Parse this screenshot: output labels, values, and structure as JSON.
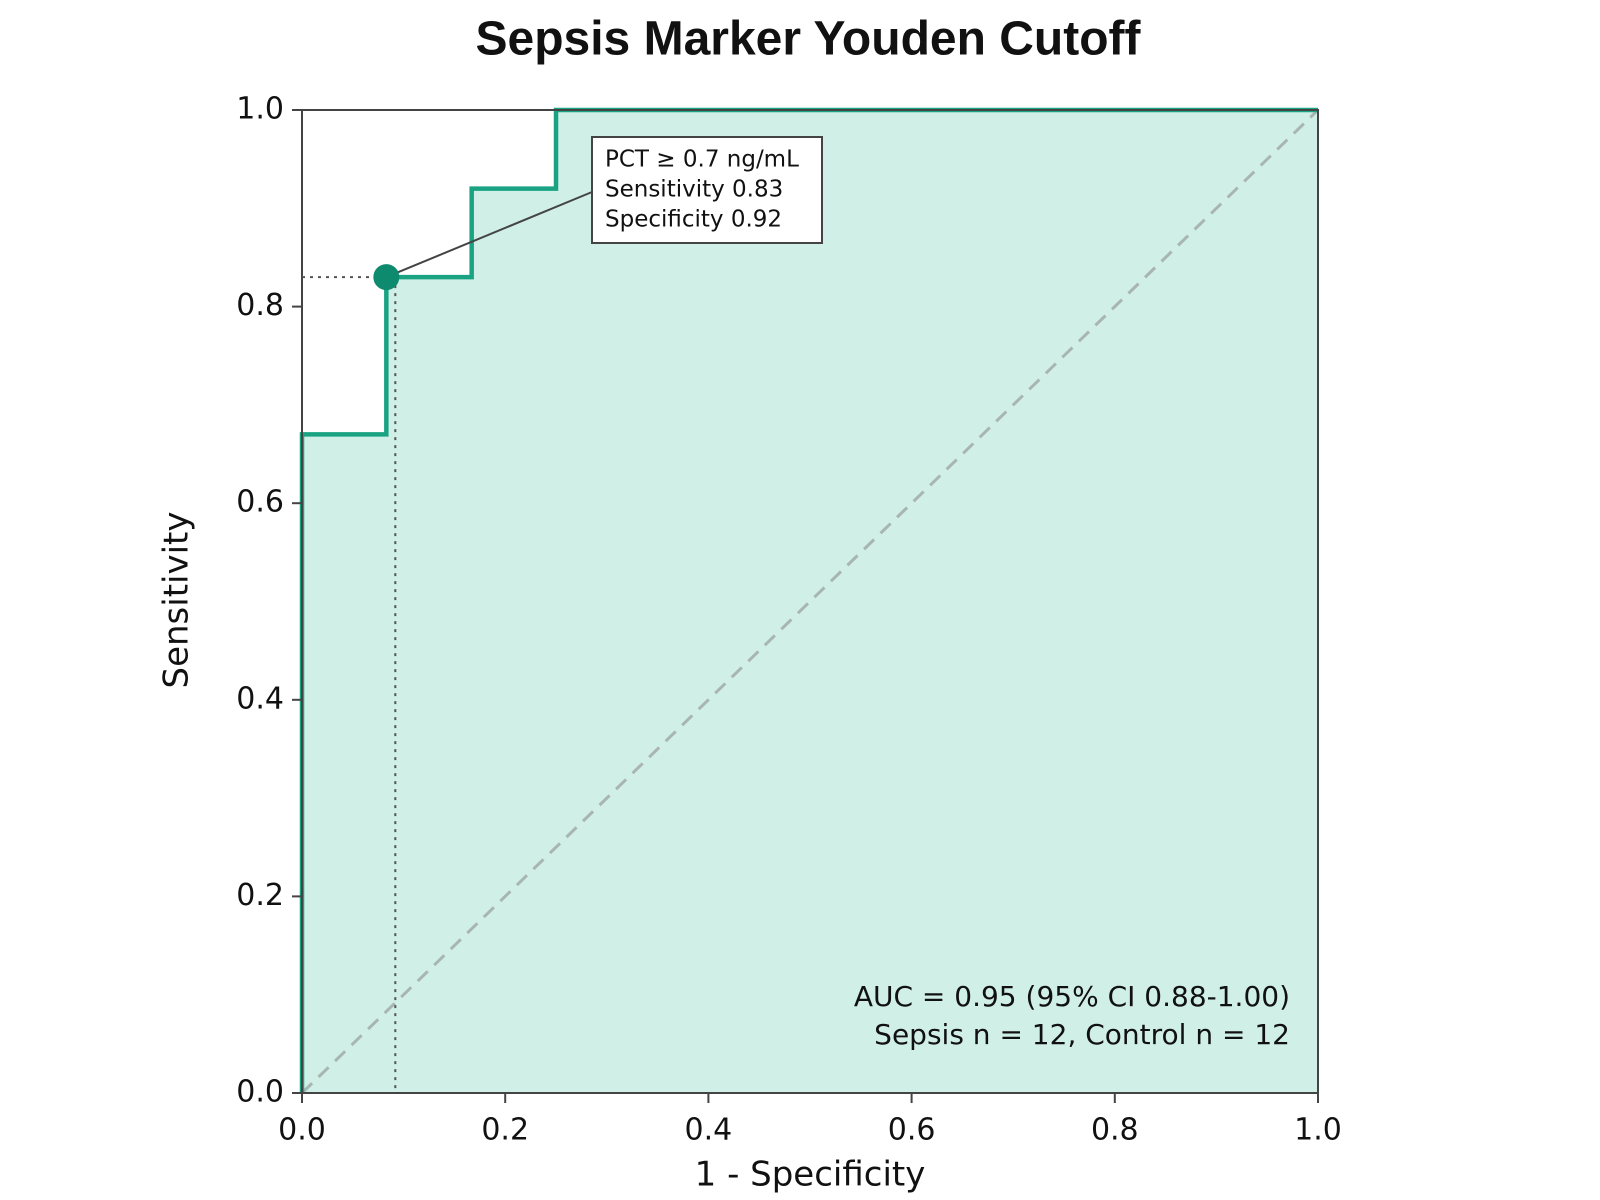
{
  "chart_data": {
    "type": "step",
    "title": "Sepsis Marker Youden Cutoff",
    "x_label": "1 - Specificity",
    "y_label": "Sensitivity",
    "x": [
      0,
      0,
      0.083,
      0.083,
      0.167,
      0.167,
      0.25,
      0.25,
      1
    ],
    "values": [
      0,
      0.67,
      0.67,
      0.83,
      0.83,
      0.92,
      0.92,
      1,
      1
    ],
    "color": "#1aa383",
    "fill_color": "#d0efe7",
    "xlim": [
      0,
      1
    ],
    "ylim": [
      0,
      1
    ],
    "xticks": [
      {
        "value": 0,
        "label": "0.0"
      },
      0.2,
      0.4,
      0.6,
      0.8,
      {
        "value": 1,
        "label": "1.0"
      }
    ],
    "yticks": [
      {
        "value": 0,
        "label": "0.0"
      },
      0.2,
      0.4,
      0.6,
      0.8,
      {
        "value": 1,
        "label": "1.0"
      }
    ],
    "highlight": {
      "x": 0.083,
      "y": 0.83,
      "color": "#0e8a6e",
      "lines": [
        "PCT ≥ 0.7 ng/mL",
        "Sensitivity 0.83",
        "Specificity 0.92"
      ]
    },
    "notes": [
      "AUC = 0.95 (95% CI 0.88-1.00)",
      "Sepsis n = 12, Control n = 12"
    ]
  }
}
